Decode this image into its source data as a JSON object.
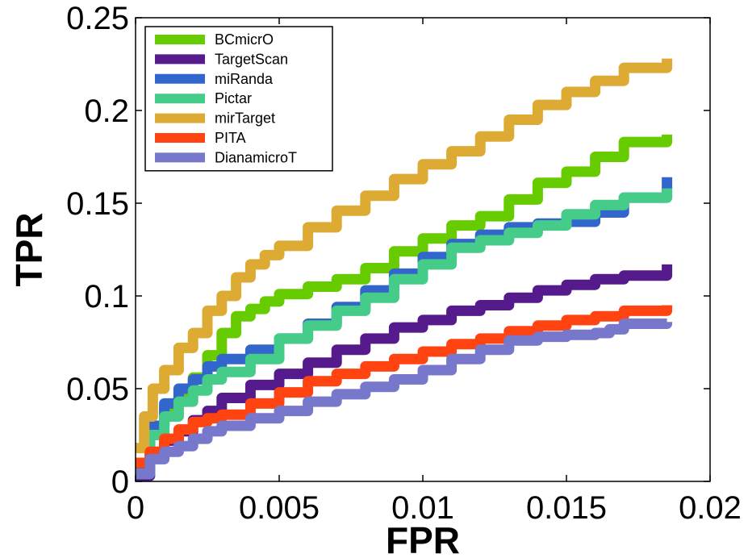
{
  "chart_data": {
    "type": "line",
    "xlabel": "FPR",
    "ylabel": "TPR",
    "xlim": [
      0,
      0.02
    ],
    "ylim": [
      0,
      0.25
    ],
    "xticks": [
      "0",
      "0.005",
      "0.01",
      "0.015",
      "0.02"
    ],
    "yticks": [
      "0",
      "0.05",
      "0.1",
      "0.15",
      "0.2",
      "0.25"
    ],
    "grid": false,
    "legend_position": "top-left",
    "series": [
      {
        "name": "BCmicrO",
        "color": "#66cc00",
        "x": [
          0,
          0.0005,
          0.001,
          0.0015,
          0.002,
          0.0025,
          0.003,
          0.0035,
          0.004,
          0.0045,
          0.005,
          0.006,
          0.007,
          0.008,
          0.009,
          0.01,
          0.011,
          0.012,
          0.013,
          0.014,
          0.015,
          0.016,
          0.017,
          0.0185
        ],
        "y": [
          0.003,
          0.03,
          0.04,
          0.048,
          0.056,
          0.068,
          0.08,
          0.089,
          0.093,
          0.097,
          0.101,
          0.105,
          0.109,
          0.115,
          0.124,
          0.131,
          0.138,
          0.143,
          0.152,
          0.161,
          0.167,
          0.175,
          0.183,
          0.187
        ]
      },
      {
        "name": "TargetScan",
        "color": "#551a8b",
        "x": [
          0,
          0.0005,
          0.001,
          0.0015,
          0.002,
          0.0025,
          0.003,
          0.004,
          0.005,
          0.006,
          0.007,
          0.008,
          0.009,
          0.01,
          0.011,
          0.012,
          0.013,
          0.014,
          0.015,
          0.016,
          0.017,
          0.0185
        ],
        "y": [
          0.003,
          0.015,
          0.022,
          0.027,
          0.033,
          0.038,
          0.045,
          0.052,
          0.058,
          0.064,
          0.071,
          0.077,
          0.083,
          0.087,
          0.092,
          0.095,
          0.099,
          0.103,
          0.106,
          0.109,
          0.111,
          0.117
        ]
      },
      {
        "name": "miRanda",
        "color": "#3366cc",
        "x": [
          0,
          0.0005,
          0.001,
          0.0015,
          0.002,
          0.0025,
          0.003,
          0.004,
          0.005,
          0.006,
          0.007,
          0.008,
          0.009,
          0.01,
          0.011,
          0.012,
          0.013,
          0.014,
          0.015,
          0.016,
          0.017,
          0.0185
        ],
        "y": [
          0.005,
          0.03,
          0.042,
          0.05,
          0.055,
          0.062,
          0.066,
          0.071,
          0.077,
          0.085,
          0.094,
          0.103,
          0.112,
          0.121,
          0.128,
          0.133,
          0.137,
          0.139,
          0.14,
          0.145,
          0.153,
          0.164
        ]
      },
      {
        "name": "Pictar",
        "color": "#44cc88",
        "x": [
          0,
          0.0005,
          0.001,
          0.0015,
          0.002,
          0.0025,
          0.003,
          0.004,
          0.005,
          0.006,
          0.007,
          0.008,
          0.009,
          0.01,
          0.011,
          0.012,
          0.013,
          0.014,
          0.015,
          0.016,
          0.017,
          0.0185
        ],
        "y": [
          0.004,
          0.025,
          0.035,
          0.043,
          0.049,
          0.055,
          0.059,
          0.066,
          0.077,
          0.084,
          0.092,
          0.099,
          0.109,
          0.117,
          0.126,
          0.13,
          0.134,
          0.138,
          0.144,
          0.149,
          0.153,
          0.158
        ]
      },
      {
        "name": "mirTarget",
        "color": "#ddaa33",
        "x": [
          0,
          0.0003,
          0.0006,
          0.001,
          0.0015,
          0.002,
          0.0025,
          0.003,
          0.0035,
          0.004,
          0.0045,
          0.005,
          0.006,
          0.007,
          0.008,
          0.009,
          0.01,
          0.011,
          0.012,
          0.013,
          0.014,
          0.015,
          0.016,
          0.017,
          0.0185
        ],
        "y": [
          0.018,
          0.035,
          0.05,
          0.06,
          0.072,
          0.08,
          0.092,
          0.1,
          0.11,
          0.117,
          0.122,
          0.127,
          0.137,
          0.146,
          0.154,
          0.163,
          0.171,
          0.178,
          0.186,
          0.195,
          0.203,
          0.21,
          0.216,
          0.223,
          0.228
        ]
      },
      {
        "name": "PITA",
        "color": "#ff4411",
        "x": [
          0,
          0.0005,
          0.001,
          0.0015,
          0.002,
          0.0025,
          0.003,
          0.004,
          0.005,
          0.006,
          0.007,
          0.008,
          0.009,
          0.01,
          0.011,
          0.012,
          0.013,
          0.014,
          0.015,
          0.016,
          0.017,
          0.0185
        ],
        "y": [
          0.01,
          0.016,
          0.023,
          0.028,
          0.032,
          0.034,
          0.036,
          0.042,
          0.048,
          0.054,
          0.058,
          0.062,
          0.066,
          0.07,
          0.074,
          0.077,
          0.081,
          0.084,
          0.087,
          0.089,
          0.092,
          0.095
        ]
      },
      {
        "name": "DianamicroT",
        "color": "#7777cc",
        "x": [
          0,
          0.0005,
          0.001,
          0.0015,
          0.002,
          0.0025,
          0.003,
          0.004,
          0.005,
          0.006,
          0.007,
          0.008,
          0.009,
          0.01,
          0.011,
          0.012,
          0.013,
          0.014,
          0.015,
          0.016,
          0.0165,
          0.017,
          0.0185
        ],
        "y": [
          0.004,
          0.012,
          0.016,
          0.019,
          0.023,
          0.027,
          0.03,
          0.034,
          0.038,
          0.043,
          0.047,
          0.051,
          0.055,
          0.06,
          0.066,
          0.071,
          0.076,
          0.078,
          0.079,
          0.08,
          0.082,
          0.085,
          0.086
        ]
      }
    ]
  }
}
